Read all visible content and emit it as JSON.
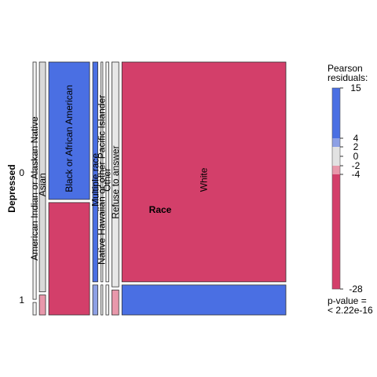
{
  "chart_data": {
    "type": "mosaic",
    "xlabel": "Race",
    "ylabel": "Depressed",
    "row_levels": [
      "0",
      "1"
    ],
    "categories": [
      "American Indian or Alaskan Native",
      "Asian",
      "Black or African American",
      "Multiple race",
      "Native Hawaiian or other Pacific Islander",
      "Other",
      "Refuse to answer",
      "White"
    ],
    "column_proportions": [
      0.014,
      0.027,
      0.177,
      0.022,
      0.008,
      0.012,
      0.03,
      0.71
    ],
    "depressed_share": [
      0.05,
      0.08,
      0.45,
      0.12,
      0.12,
      0.12,
      0.1,
      0.12
    ],
    "residual_colors": [
      "#f0f0f0",
      "#d9d9d9",
      "#4a6fe3",
      "#4a6fe3",
      "#f0f0f0",
      "#f0f0f0",
      "#e7e7e7",
      "#d33f6a"
    ],
    "residual_colors_depressed": [
      "#f0f0f0",
      "#e898ab",
      "#d33f6a",
      "#8da0e5",
      "#f0f0f0",
      "#f0f0f0",
      "#e898ab",
      "#4a6fe3"
    ],
    "legend": {
      "title_line1": "Pearson",
      "title_line2": "residuals:",
      "range": [
        -28,
        15
      ],
      "ticks": [
        {
          "value": 15,
          "label": "15"
        },
        {
          "value": 4,
          "label": "4"
        },
        {
          "value": 2,
          "label": "2"
        },
        {
          "value": 0,
          "label": "0"
        },
        {
          "value": -2,
          "label": "-2"
        },
        {
          "value": -4,
          "label": "-4"
        },
        {
          "value": -28,
          "label": "-28"
        }
      ],
      "bands": [
        {
          "from": 4,
          "to": 15,
          "color": "#4a6fe3"
        },
        {
          "from": 2,
          "to": 4,
          "color": "#8da0e5"
        },
        {
          "from": -2,
          "to": 2,
          "color": "#e2e2e2"
        },
        {
          "from": -4,
          "to": -2,
          "color": "#e898ab"
        },
        {
          "from": -28,
          "to": -4,
          "color": "#d33f6a"
        }
      ],
      "pvalue_line1": "p-value =",
      "pvalue_line2": "< 2.22e-16"
    }
  }
}
